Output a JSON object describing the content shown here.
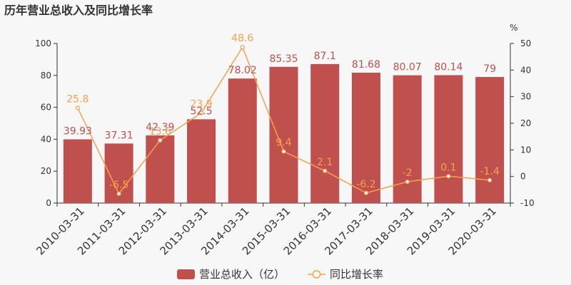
{
  "chart_data": {
    "type": "bar",
    "title": "历年营业总收入及同比增长率",
    "categories": [
      "2010-03-31",
      "2011-03-31",
      "2012-03-31",
      "2013-03-31",
      "2014-03-31",
      "2015-03-31",
      "2016-03-31",
      "2017-03-31",
      "2018-03-31",
      "2019-03-31",
      "2020-03-31"
    ],
    "series": [
      {
        "name": "营业总收入（亿）",
        "type": "bar",
        "axis": "left",
        "color": "#c0504d",
        "values": [
          39.93,
          37.31,
          42.39,
          52.5,
          78.02,
          85.35,
          87.1,
          81.68,
          80.07,
          80.14,
          79
        ],
        "labels": [
          "39.93",
          "37.31",
          "42.39",
          "52.5",
          "78.02",
          "85.35",
          "87.1",
          "81.68",
          "80.07",
          "80.14",
          "79"
        ]
      },
      {
        "name": "同比增长率",
        "type": "line",
        "axis": "right",
        "color": "#f5a04e",
        "values": [
          25.8,
          -6.5,
          13.6,
          23.9,
          48.6,
          9.4,
          2.1,
          -6.2,
          -2,
          0.1,
          -1.4
        ],
        "labels": [
          "25.8",
          "-6.5",
          "13.6",
          "23.9",
          "48.6",
          "9.4",
          "2.1",
          "-6.2",
          "-2",
          "0.1",
          "-1.4"
        ]
      }
    ],
    "y_left": {
      "min": 0,
      "max": 100,
      "ticks": [
        0,
        20,
        40,
        60,
        80,
        100
      ]
    },
    "y_right": {
      "min": -10,
      "max": 50,
      "ticks": [
        -10,
        0,
        10,
        20,
        30,
        40,
        50
      ],
      "unit": "%"
    },
    "grid": false,
    "legend": "bottom-center"
  }
}
